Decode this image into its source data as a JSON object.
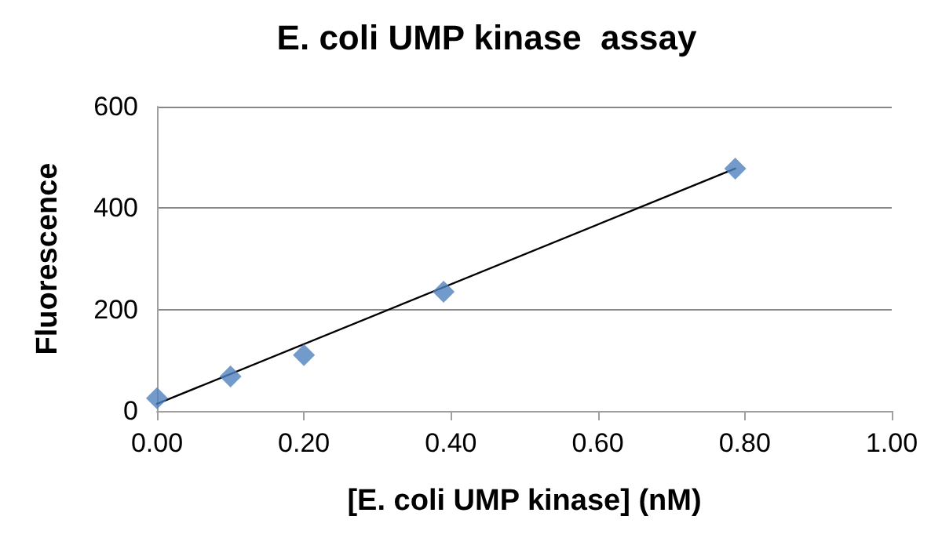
{
  "chart_data": {
    "type": "scatter",
    "title": "E. coli UMP kinase  assay",
    "xlabel": "[E. coli UMP kinase] (nM)",
    "ylabel": "Fluorescence",
    "x": [
      0,
      0.1,
      0.2,
      0.39,
      0.787
    ],
    "series": [
      {
        "color": "#4f81bd",
        "values": [
          25,
          68,
          110,
          235,
          478
        ],
        "marker": "diamond"
      },
      {
        "type": "line",
        "color": "#000000",
        "x": [
          0,
          0.787
        ],
        "values": [
          14,
          478
        ],
        "marker": "none"
      }
    ],
    "xlim": [
      0,
      1
    ],
    "xticks": [
      {
        "value": 0,
        "label": "0.00"
      },
      {
        "value": 0.2,
        "label": "0.20"
      },
      {
        "value": 0.4,
        "label": "0.40"
      },
      {
        "value": 0.6,
        "label": "0.60"
      },
      {
        "value": 0.8,
        "label": "0.80"
      },
      {
        "value": 1,
        "label": "1.00"
      }
    ],
    "ylim": [
      0,
      600
    ],
    "yticks": [
      0,
      200,
      400,
      600
    ],
    "grid": "y"
  }
}
